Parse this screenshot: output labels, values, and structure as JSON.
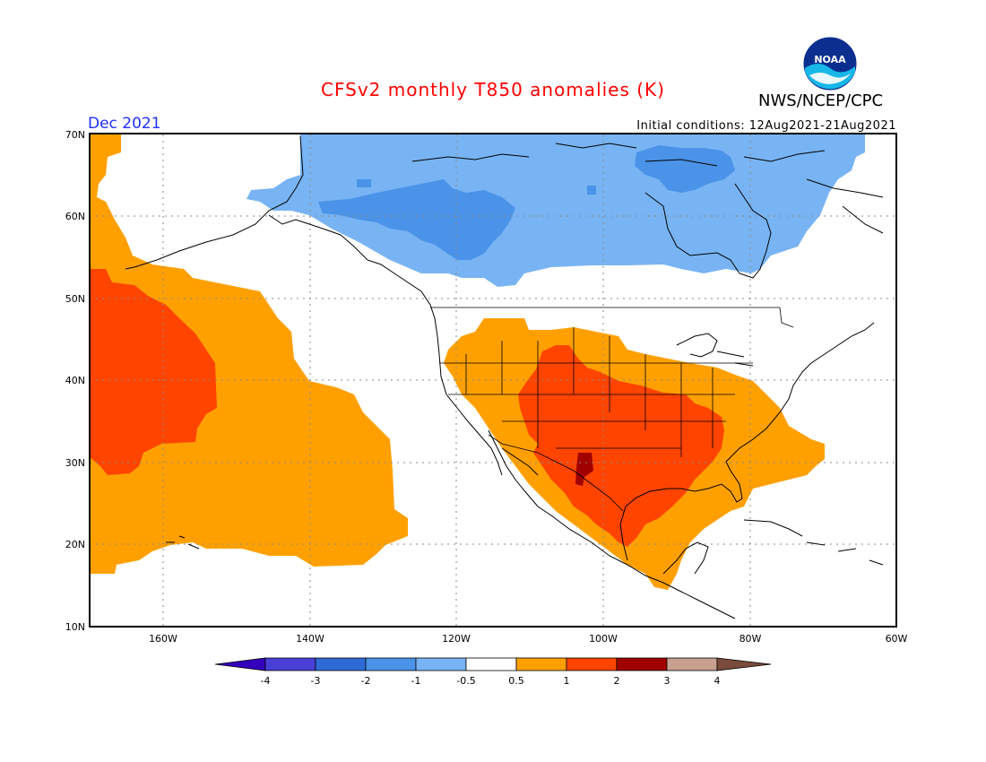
{
  "header": {
    "title": "CFSv2 monthly T850 anomalies (K)",
    "agency": "NWS/NCEP/CPC",
    "valid_month": "Dec 2021",
    "initial_conditions": "Initial conditions: 12Aug2021-21Aug2021",
    "logo_text": "NOAA"
  },
  "axes": {
    "lat_labels": [
      "70N",
      "60N",
      "50N",
      "40N",
      "30N",
      "20N",
      "10N"
    ],
    "lon_labels": [
      "160W",
      "140W",
      "120W",
      "100W",
      "80W",
      "60W"
    ]
  },
  "colorbar": {
    "labels": [
      "-4",
      "-3",
      "-2",
      "-1",
      "-0.5",
      "0.5",
      "1",
      "2",
      "3",
      "4"
    ],
    "colors": [
      "#3300bb",
      "#4a40d8",
      "#2f6bd6",
      "#4a93e8",
      "#78b4f3",
      "#ffffff",
      "#ffa000",
      "#ff4400",
      "#a00000",
      "#c8a090",
      "#7a4a3a"
    ]
  },
  "map": {
    "colors": {
      "cold_1": "#78b4f3",
      "cold_2": "#4a93e8",
      "warm_1": "#ffa000",
      "warm_2": "#ff4400",
      "warm_3": "#a00000"
    }
  }
}
